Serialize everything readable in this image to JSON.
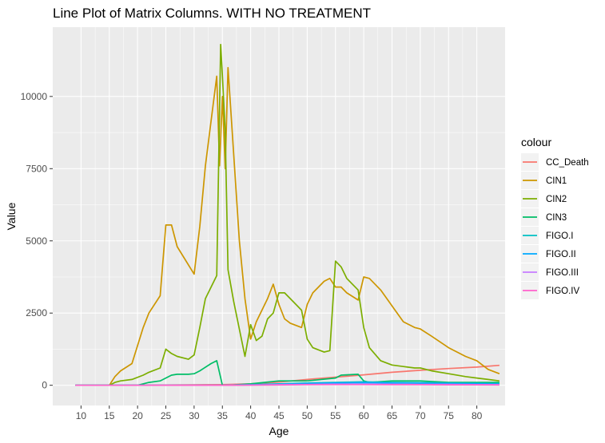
{
  "chart_data": {
    "type": "line",
    "title": "Line Plot of Matrix Columns. WITH NO TREATMENT",
    "xlabel": "Age",
    "ylabel": "Value",
    "xlim": [
      5,
      85
    ],
    "ylim": [
      -700,
      12400
    ],
    "x_ticks": [
      10,
      15,
      20,
      25,
      30,
      35,
      40,
      45,
      50,
      55,
      60,
      65,
      70,
      75,
      80
    ],
    "y_ticks": [
      0,
      2500,
      5000,
      7500,
      10000
    ],
    "y_tick_labels": [
      "0",
      "2500",
      "5000",
      "7500",
      "10000"
    ],
    "legend_title": "colour",
    "grid": true,
    "legend_position": "right",
    "series": [
      {
        "name": "CC_Death",
        "color": "#F8766D",
        "x": [
          9,
          15,
          20,
          25,
          30,
          35,
          40,
          45,
          50,
          55,
          60,
          65,
          70,
          75,
          80,
          84
        ],
        "values": [
          0,
          0,
          5,
          10,
          15,
          25,
          50,
          110,
          200,
          280,
          360,
          450,
          520,
          580,
          630,
          690
        ]
      },
      {
        "name": "CIN1",
        "color": "#CD9600",
        "x": [
          9,
          15,
          16,
          17,
          19,
          21,
          22,
          24,
          25,
          26,
          27,
          30,
          31,
          32,
          34,
          34.5,
          35,
          35.5,
          36,
          38,
          39,
          40,
          41,
          43,
          44,
          45,
          46,
          47,
          49,
          50,
          51,
          53,
          54,
          55,
          56,
          57,
          59,
          60,
          61,
          63,
          65,
          67,
          69,
          70,
          72,
          75,
          78,
          80,
          82,
          84
        ],
        "values": [
          0,
          0,
          300,
          500,
          750,
          2000,
          2500,
          3100,
          5550,
          5550,
          4800,
          3850,
          5500,
          7600,
          10700,
          7600,
          10000,
          7500,
          11000,
          5000,
          3000,
          1600,
          2200,
          3000,
          3500,
          2800,
          2300,
          2150,
          2000,
          2800,
          3200,
          3600,
          3700,
          3400,
          3400,
          3200,
          2950,
          3750,
          3700,
          3300,
          2750,
          2200,
          2000,
          1950,
          1700,
          1300,
          1000,
          850,
          550,
          400
        ]
      },
      {
        "name": "CIN2",
        "color": "#7CAE00",
        "x": [
          9,
          15,
          16,
          17,
          19,
          21,
          22,
          24,
          25,
          26,
          27,
          29,
          30,
          31,
          32,
          34,
          34.7,
          35,
          35.5,
          36,
          37,
          39,
          40,
          41,
          42,
          43,
          44,
          45,
          46,
          47,
          49,
          50,
          51,
          53,
          54,
          55,
          56,
          57,
          59,
          60,
          61,
          63,
          65,
          67,
          69,
          70,
          72,
          75,
          78,
          80,
          82,
          84
        ],
        "values": [
          0,
          0,
          100,
          150,
          200,
          350,
          450,
          600,
          1250,
          1100,
          1000,
          900,
          1050,
          2000,
          3000,
          3800,
          11800,
          10700,
          8800,
          4000,
          2900,
          1000,
          2100,
          1550,
          1700,
          2300,
          2500,
          3200,
          3200,
          3000,
          2600,
          1600,
          1300,
          1150,
          1200,
          4300,
          4100,
          3700,
          3300,
          2000,
          1300,
          850,
          700,
          650,
          600,
          600,
          500,
          400,
          300,
          250,
          200,
          150
        ]
      },
      {
        "name": "CIN3",
        "color": "#00BE67",
        "x": [
          9,
          15,
          20,
          22,
          24,
          25,
          26,
          27,
          29,
          30,
          31,
          33,
          34,
          35,
          36,
          40,
          45,
          50,
          55,
          56,
          59,
          60,
          61,
          65,
          70,
          75,
          80,
          84
        ],
        "values": [
          0,
          0,
          0,
          100,
          150,
          250,
          350,
          380,
          380,
          400,
          500,
          750,
          850,
          0,
          0,
          50,
          150,
          150,
          250,
          350,
          380,
          150,
          100,
          150,
          150,
          100,
          100,
          100
        ]
      },
      {
        "name": "FIGO.I",
        "color": "#00BFC4",
        "x": [
          9,
          35,
          40,
          45,
          50,
          55,
          60,
          65,
          70,
          75,
          80,
          84
        ],
        "values": [
          0,
          0,
          20,
          50,
          80,
          100,
          120,
          100,
          90,
          80,
          70,
          60
        ]
      },
      {
        "name": "FIGO.II",
        "color": "#00A9FF",
        "x": [
          9,
          35,
          40,
          45,
          50,
          55,
          60,
          65,
          70,
          75,
          80,
          84
        ],
        "values": [
          0,
          0,
          15,
          35,
          60,
          80,
          90,
          80,
          70,
          60,
          50,
          40
        ]
      },
      {
        "name": "FIGO.III",
        "color": "#C77CFF",
        "x": [
          9,
          35,
          40,
          45,
          50,
          55,
          60,
          65,
          70,
          75,
          80,
          84
        ],
        "values": [
          0,
          0,
          10,
          20,
          30,
          40,
          40,
          35,
          30,
          30,
          25,
          20
        ]
      },
      {
        "name": "FIGO.IV",
        "color": "#FF61CC",
        "x": [
          9,
          35,
          40,
          45,
          50,
          55,
          60,
          65,
          70,
          75,
          80,
          84
        ],
        "values": [
          0,
          0,
          5,
          10,
          20,
          25,
          25,
          20,
          20,
          15,
          15,
          10
        ]
      }
    ]
  }
}
